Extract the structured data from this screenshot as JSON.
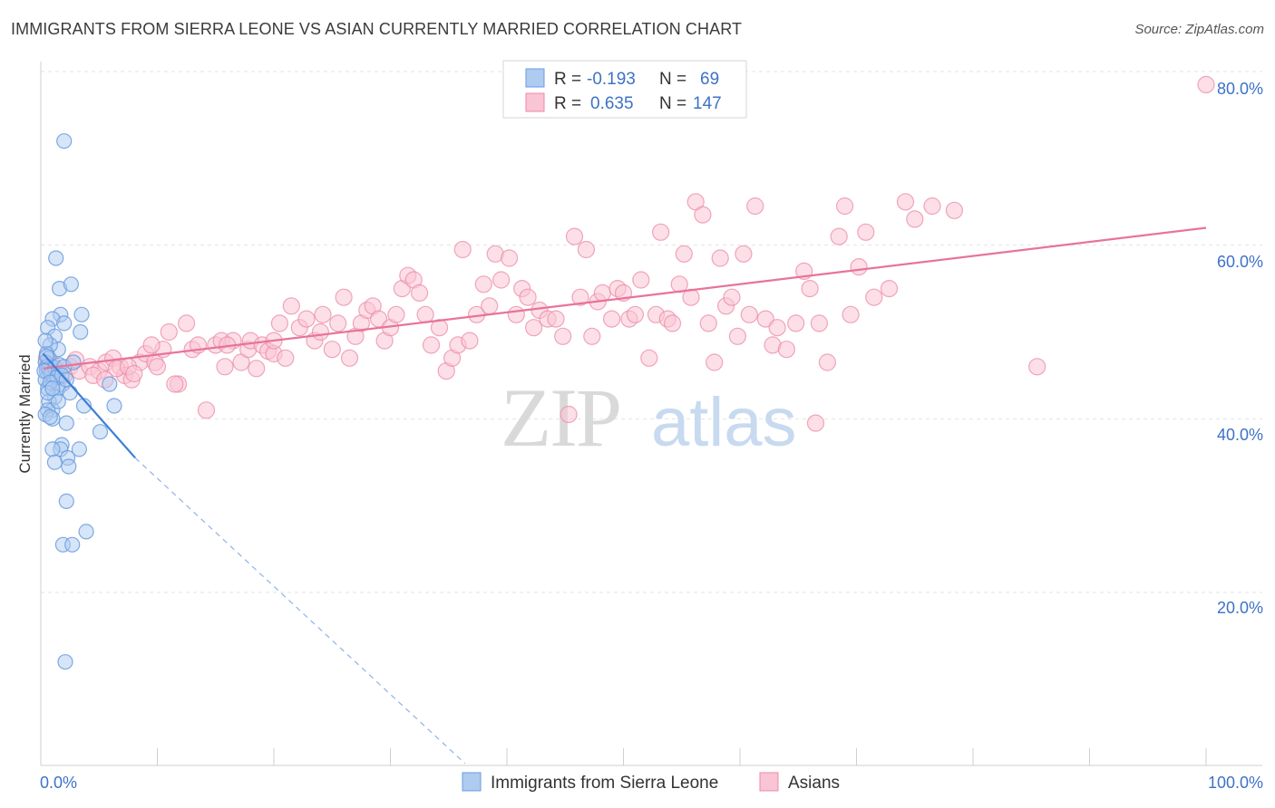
{
  "header": {
    "title": "IMMIGRANTS FROM SIERRA LEONE VS ASIAN CURRENTLY MARRIED CORRELATION CHART",
    "source": "Source: ZipAtlas.com"
  },
  "watermark": {
    "part1": "ZIP",
    "part2": "atlas"
  },
  "legend": {
    "rows": [
      {
        "r_label": "R =",
        "r_value": "-0.193",
        "n_label": "N =",
        "n_value": "69",
        "color": "#aecbf0",
        "stroke": "#6b9be0"
      },
      {
        "r_label": "R =",
        "r_value": "0.635",
        "n_label": "N =",
        "n_value": "147",
        "color": "#f9c4d4",
        "stroke": "#ec8aa8"
      }
    ]
  },
  "bottom_legend": [
    {
      "label": "Immigrants from Sierra Leone",
      "color": "#aecbf0",
      "stroke": "#6b9be0"
    },
    {
      "label": "Asians",
      "color": "#f9c4d4",
      "stroke": "#ec8aa8"
    }
  ],
  "chart_data": {
    "type": "scatter",
    "ylabel": "Currently Married",
    "xlabel": "",
    "x_tick_labels": [
      "0.0%",
      "100.0%"
    ],
    "y_tick_labels": [
      "20.0%",
      "40.0%",
      "60.0%",
      "80.0%"
    ],
    "y_ticks": [
      20,
      40,
      60,
      80
    ],
    "xlim": [
      0,
      100
    ],
    "ylim": [
      0,
      82
    ],
    "grid": true,
    "series": [
      {
        "name": "Immigrants from Sierra Leone",
        "color": "#6b9be0",
        "fill": "#aecbf0",
        "points": [
          [
            2.0,
            72.0
          ],
          [
            1.3,
            58.5
          ],
          [
            1.6,
            55.0
          ],
          [
            2.6,
            55.5
          ],
          [
            3.5,
            52.0
          ],
          [
            1.7,
            52.0
          ],
          [
            1.0,
            51.5
          ],
          [
            2.0,
            51.0
          ],
          [
            0.6,
            50.5
          ],
          [
            3.4,
            50.0
          ],
          [
            1.2,
            49.5
          ],
          [
            1.5,
            48.0
          ],
          [
            0.8,
            48.5
          ],
          [
            0.5,
            47.5
          ],
          [
            0.7,
            47.0
          ],
          [
            0.4,
            46.5
          ],
          [
            0.6,
            46.0
          ],
          [
            0.9,
            46.0
          ],
          [
            1.1,
            45.5
          ],
          [
            0.5,
            45.5
          ],
          [
            0.8,
            45.0
          ],
          [
            1.3,
            45.0
          ],
          [
            0.4,
            44.5
          ],
          [
            1.9,
            44.0
          ],
          [
            1.0,
            44.0
          ],
          [
            5.9,
            44.0
          ],
          [
            0.6,
            43.5
          ],
          [
            1.5,
            43.5
          ],
          [
            2.5,
            43.0
          ],
          [
            1.2,
            42.5
          ],
          [
            0.7,
            42.0
          ],
          [
            3.7,
            41.5
          ],
          [
            6.3,
            41.5
          ],
          [
            1.0,
            41.0
          ],
          [
            0.6,
            41.0
          ],
          [
            0.4,
            40.5
          ],
          [
            1.0,
            40.0
          ],
          [
            2.2,
            39.5
          ],
          [
            5.1,
            38.5
          ],
          [
            1.8,
            37.0
          ],
          [
            1.7,
            36.5
          ],
          [
            3.3,
            36.5
          ],
          [
            1.0,
            36.5
          ],
          [
            2.3,
            35.5
          ],
          [
            1.2,
            35.0
          ],
          [
            2.4,
            34.5
          ],
          [
            2.2,
            30.5
          ],
          [
            3.9,
            27.0
          ],
          [
            1.9,
            25.5
          ],
          [
            2.7,
            25.5
          ],
          [
            2.1,
            12.0
          ],
          [
            0.5,
            46.0
          ],
          [
            0.7,
            45.8
          ],
          [
            0.9,
            45.2
          ],
          [
            1.2,
            45.9
          ],
          [
            0.3,
            45.5
          ],
          [
            1.6,
            46.2
          ],
          [
            1.4,
            44.8
          ],
          [
            0.8,
            44.2
          ],
          [
            2.0,
            46.0
          ],
          [
            0.5,
            47.2
          ],
          [
            1.8,
            45.0
          ],
          [
            2.2,
            44.5
          ],
          [
            0.6,
            43.0
          ],
          [
            1.0,
            43.5
          ],
          [
            1.5,
            42.0
          ],
          [
            0.8,
            40.2
          ],
          [
            0.4,
            49.0
          ],
          [
            2.8,
            46.5
          ]
        ],
        "trend": {
          "x0": 0.2,
          "y0": 47.5,
          "x1": 8.1,
          "y1": 35.5,
          "dash_x1": 36.4,
          "dash_y1": 0.3
        }
      },
      {
        "name": "Asians",
        "color": "#ec8aa8",
        "fill": "#f9c4d4",
        "points": [
          [
            0.8,
            46.0
          ],
          [
            1.5,
            45.5
          ],
          [
            2.5,
            46.0
          ],
          [
            3.3,
            45.5
          ],
          [
            4.2,
            46.0
          ],
          [
            5.0,
            45.5
          ],
          [
            5.6,
            46.5
          ],
          [
            6.2,
            47.0
          ],
          [
            6.8,
            46.0
          ],
          [
            7.2,
            45.0
          ],
          [
            7.8,
            44.5
          ],
          [
            8.5,
            46.5
          ],
          [
            9.0,
            47.5
          ],
          [
            9.8,
            46.5
          ],
          [
            10.5,
            48.0
          ],
          [
            11.0,
            50.0
          ],
          [
            11.8,
            44.0
          ],
          [
            12.5,
            51.0
          ],
          [
            13.0,
            48.0
          ],
          [
            13.5,
            48.5
          ],
          [
            14.2,
            41.0
          ],
          [
            15.0,
            48.5
          ],
          [
            15.5,
            49.0
          ],
          [
            15.8,
            46.0
          ],
          [
            16.5,
            49.0
          ],
          [
            17.2,
            46.5
          ],
          [
            17.8,
            48.0
          ],
          [
            18.0,
            49.0
          ],
          [
            18.5,
            45.8
          ],
          [
            19.0,
            48.5
          ],
          [
            19.5,
            47.8
          ],
          [
            20.0,
            47.5
          ],
          [
            20.5,
            51.0
          ],
          [
            21.0,
            47.0
          ],
          [
            21.5,
            53.0
          ],
          [
            22.2,
            50.5
          ],
          [
            22.8,
            51.5
          ],
          [
            23.5,
            49.0
          ],
          [
            24.2,
            52.0
          ],
          [
            25.0,
            48.0
          ],
          [
            25.5,
            51.0
          ],
          [
            26.0,
            54.0
          ],
          [
            26.5,
            47.0
          ],
          [
            27.0,
            49.5
          ],
          [
            27.5,
            51.0
          ],
          [
            28.0,
            52.5
          ],
          [
            28.5,
            53.0
          ],
          [
            29.0,
            51.5
          ],
          [
            29.5,
            49.0
          ],
          [
            30.0,
            50.5
          ],
          [
            30.5,
            52.0
          ],
          [
            31.0,
            55.0
          ],
          [
            31.5,
            56.5
          ],
          [
            32.0,
            56.0
          ],
          [
            32.5,
            54.5
          ],
          [
            33.0,
            52.0
          ],
          [
            33.5,
            48.5
          ],
          [
            34.2,
            50.5
          ],
          [
            34.8,
            45.5
          ],
          [
            35.3,
            47.0
          ],
          [
            35.8,
            48.5
          ],
          [
            36.2,
            59.5
          ],
          [
            36.8,
            49.0
          ],
          [
            37.4,
            52.0
          ],
          [
            38.0,
            55.5
          ],
          [
            38.5,
            53.0
          ],
          [
            39.0,
            59.0
          ],
          [
            39.5,
            56.0
          ],
          [
            40.2,
            58.5
          ],
          [
            40.8,
            52.0
          ],
          [
            41.3,
            55.0
          ],
          [
            41.8,
            54.0
          ],
          [
            42.3,
            50.5
          ],
          [
            42.8,
            52.5
          ],
          [
            43.5,
            51.5
          ],
          [
            44.2,
            51.5
          ],
          [
            44.8,
            49.5
          ],
          [
            45.3,
            40.5
          ],
          [
            45.8,
            61.0
          ],
          [
            46.3,
            54.0
          ],
          [
            46.8,
            59.5
          ],
          [
            47.3,
            49.5
          ],
          [
            47.8,
            53.5
          ],
          [
            48.2,
            54.5
          ],
          [
            49.0,
            51.5
          ],
          [
            49.5,
            55.0
          ],
          [
            50.0,
            54.5
          ],
          [
            50.5,
            51.5
          ],
          [
            51.0,
            52.0
          ],
          [
            51.5,
            56.0
          ],
          [
            52.2,
            47.0
          ],
          [
            52.8,
            52.0
          ],
          [
            53.2,
            61.5
          ],
          [
            53.8,
            51.5
          ],
          [
            54.2,
            51.0
          ],
          [
            54.8,
            55.5
          ],
          [
            55.2,
            59.0
          ],
          [
            55.8,
            54.0
          ],
          [
            56.2,
            65.0
          ],
          [
            56.8,
            63.5
          ],
          [
            57.3,
            51.0
          ],
          [
            57.8,
            46.5
          ],
          [
            58.3,
            58.5
          ],
          [
            58.8,
            53.0
          ],
          [
            59.3,
            54.0
          ],
          [
            59.8,
            49.5
          ],
          [
            60.3,
            59.0
          ],
          [
            60.8,
            52.0
          ],
          [
            61.3,
            64.5
          ],
          [
            62.2,
            51.5
          ],
          [
            62.8,
            48.5
          ],
          [
            63.2,
            50.5
          ],
          [
            64.0,
            48.0
          ],
          [
            64.8,
            51.0
          ],
          [
            65.5,
            57.0
          ],
          [
            66.0,
            55.0
          ],
          [
            66.8,
            51.0
          ],
          [
            67.5,
            46.5
          ],
          [
            68.5,
            61.0
          ],
          [
            69.0,
            64.5
          ],
          [
            69.5,
            52.0
          ],
          [
            70.2,
            57.5
          ],
          [
            70.8,
            61.5
          ],
          [
            71.5,
            54.0
          ],
          [
            72.8,
            55.0
          ],
          [
            74.2,
            65.0
          ],
          [
            75.0,
            63.0
          ],
          [
            76.5,
            64.5
          ],
          [
            78.4,
            64.0
          ],
          [
            66.5,
            39.5
          ],
          [
            85.5,
            46.0
          ],
          [
            100.0,
            78.5
          ],
          [
            0.5,
            47.0
          ],
          [
            1.0,
            46.2
          ],
          [
            2.0,
            45.0
          ],
          [
            3.0,
            46.8
          ],
          [
            4.5,
            45.0
          ],
          [
            5.5,
            44.5
          ],
          [
            6.5,
            45.8
          ],
          [
            7.5,
            46.0
          ],
          [
            8.0,
            45.2
          ],
          [
            9.5,
            48.5
          ],
          [
            10.0,
            46.0
          ],
          [
            11.5,
            44.0
          ],
          [
            16.0,
            48.5
          ],
          [
            20.0,
            49.0
          ],
          [
            24.0,
            50.0
          ]
        ],
        "trend": {
          "x0": 0.2,
          "y0": 45.8,
          "x1": 100.0,
          "y1": 62.0
        }
      }
    ]
  }
}
